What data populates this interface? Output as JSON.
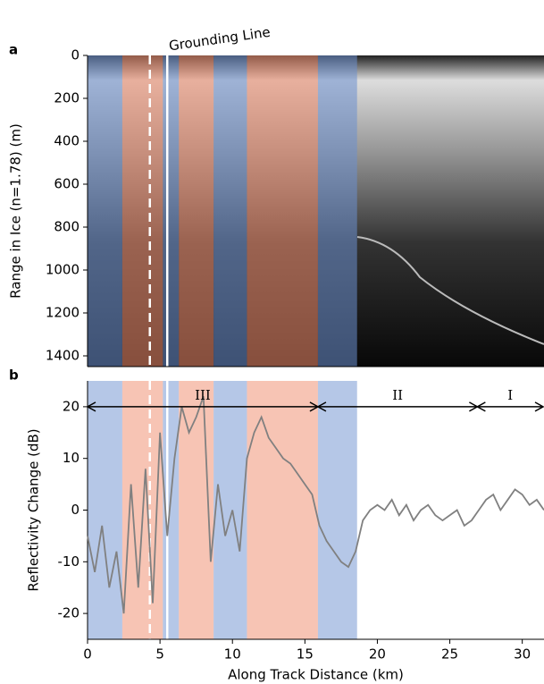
{
  "chart_data": [
    {
      "type": "image",
      "panel_label": "a",
      "y_label": "Range in Ice (n=1.78) (m)",
      "annotation": "Grounding Line",
      "xlim": [
        0,
        31.5
      ],
      "ylim": [
        1450,
        0
      ],
      "yticks": [
        0,
        200,
        400,
        600,
        800,
        1000,
        1200,
        1400
      ],
      "spans": [
        {
          "start": 0,
          "end": 2.4,
          "color": "#6b8fd0"
        },
        {
          "start": 2.4,
          "end": 5.2,
          "color": "#f08a6a"
        },
        {
          "start": 5.2,
          "end": 6.3,
          "color": "#6b8fd0"
        },
        {
          "start": 6.3,
          "end": 8.7,
          "color": "#f08a6a"
        },
        {
          "start": 8.7,
          "end": 11.0,
          "color": "#6b8fd0"
        },
        {
          "start": 11.0,
          "end": 15.9,
          "color": "#f08a6a"
        },
        {
          "start": 15.9,
          "end": 18.6,
          "color": "#6b8fd0"
        }
      ],
      "vlines": [
        {
          "x": 4.3,
          "style": "dashed"
        },
        {
          "x": 5.5,
          "style": "solid"
        }
      ]
    },
    {
      "type": "line",
      "panel_label": "b",
      "x_label": "Along Track Distance (km)",
      "y_label": "Reflectivity Change (dB)",
      "xlim": [
        0,
        31.5
      ],
      "ylim": [
        -25,
        25
      ],
      "xticks": [
        0,
        5,
        10,
        15,
        20,
        25,
        30
      ],
      "yticks": [
        -20,
        -10,
        0,
        10,
        20
      ],
      "spans": [
        {
          "start": 0,
          "end": 2.4,
          "color": "#6b8fd0"
        },
        {
          "start": 2.4,
          "end": 5.2,
          "color": "#f08a6a"
        },
        {
          "start": 5.2,
          "end": 6.3,
          "color": "#6b8fd0"
        },
        {
          "start": 6.3,
          "end": 8.7,
          "color": "#f08a6a"
        },
        {
          "start": 8.7,
          "end": 11.0,
          "color": "#6b8fd0"
        },
        {
          "start": 11.0,
          "end": 15.9,
          "color": "#f08a6a"
        },
        {
          "start": 15.9,
          "end": 18.6,
          "color": "#6b8fd0"
        }
      ],
      "vlines": [
        {
          "x": 4.3,
          "style": "dashed"
        },
        {
          "x": 5.5,
          "style": "solid"
        }
      ],
      "regions": [
        {
          "label": "III",
          "start": 0,
          "end": 15.9,
          "y": 20
        },
        {
          "label": "II",
          "start": 15.9,
          "end": 26.9,
          "y": 20
        },
        {
          "label": "I",
          "start": 26.9,
          "end": 31.5,
          "y": 20
        }
      ],
      "x": [
        0,
        0.5,
        1,
        1.5,
        2,
        2.5,
        3,
        3.5,
        4,
        4.5,
        5,
        5.5,
        6,
        6.5,
        7,
        7.5,
        8,
        8.5,
        9,
        9.5,
        10,
        10.5,
        11,
        11.5,
        12,
        12.5,
        13,
        13.5,
        14,
        14.5,
        15,
        15.5,
        16,
        16.5,
        17,
        17.5,
        18,
        18.5,
        19,
        19.5,
        20,
        20.5,
        21,
        21.5,
        22,
        22.5,
        23,
        23.5,
        24,
        24.5,
        25,
        25.5,
        26,
        26.5,
        27,
        27.5,
        28,
        28.5,
        29,
        29.5,
        30,
        30.5,
        31,
        31.5
      ],
      "series": [
        {
          "color": "#808080",
          "values": [
            -5,
            -12,
            -3,
            -15,
            -8,
            -20,
            5,
            -15,
            8,
            -18,
            15,
            -5,
            10,
            20,
            15,
            18,
            22,
            -10,
            5,
            -5,
            0,
            -8,
            10,
            15,
            18,
            14,
            12,
            10,
            9,
            7,
            5,
            3,
            -3,
            -6,
            -8,
            -10,
            -11,
            -8,
            -2,
            0,
            1,
            0,
            2,
            -1,
            1,
            -2,
            0,
            1,
            -1,
            -2,
            -1,
            0,
            -3,
            -2,
            0,
            2,
            3,
            0,
            2,
            4,
            3,
            1,
            2,
            0
          ]
        }
      ]
    }
  ]
}
